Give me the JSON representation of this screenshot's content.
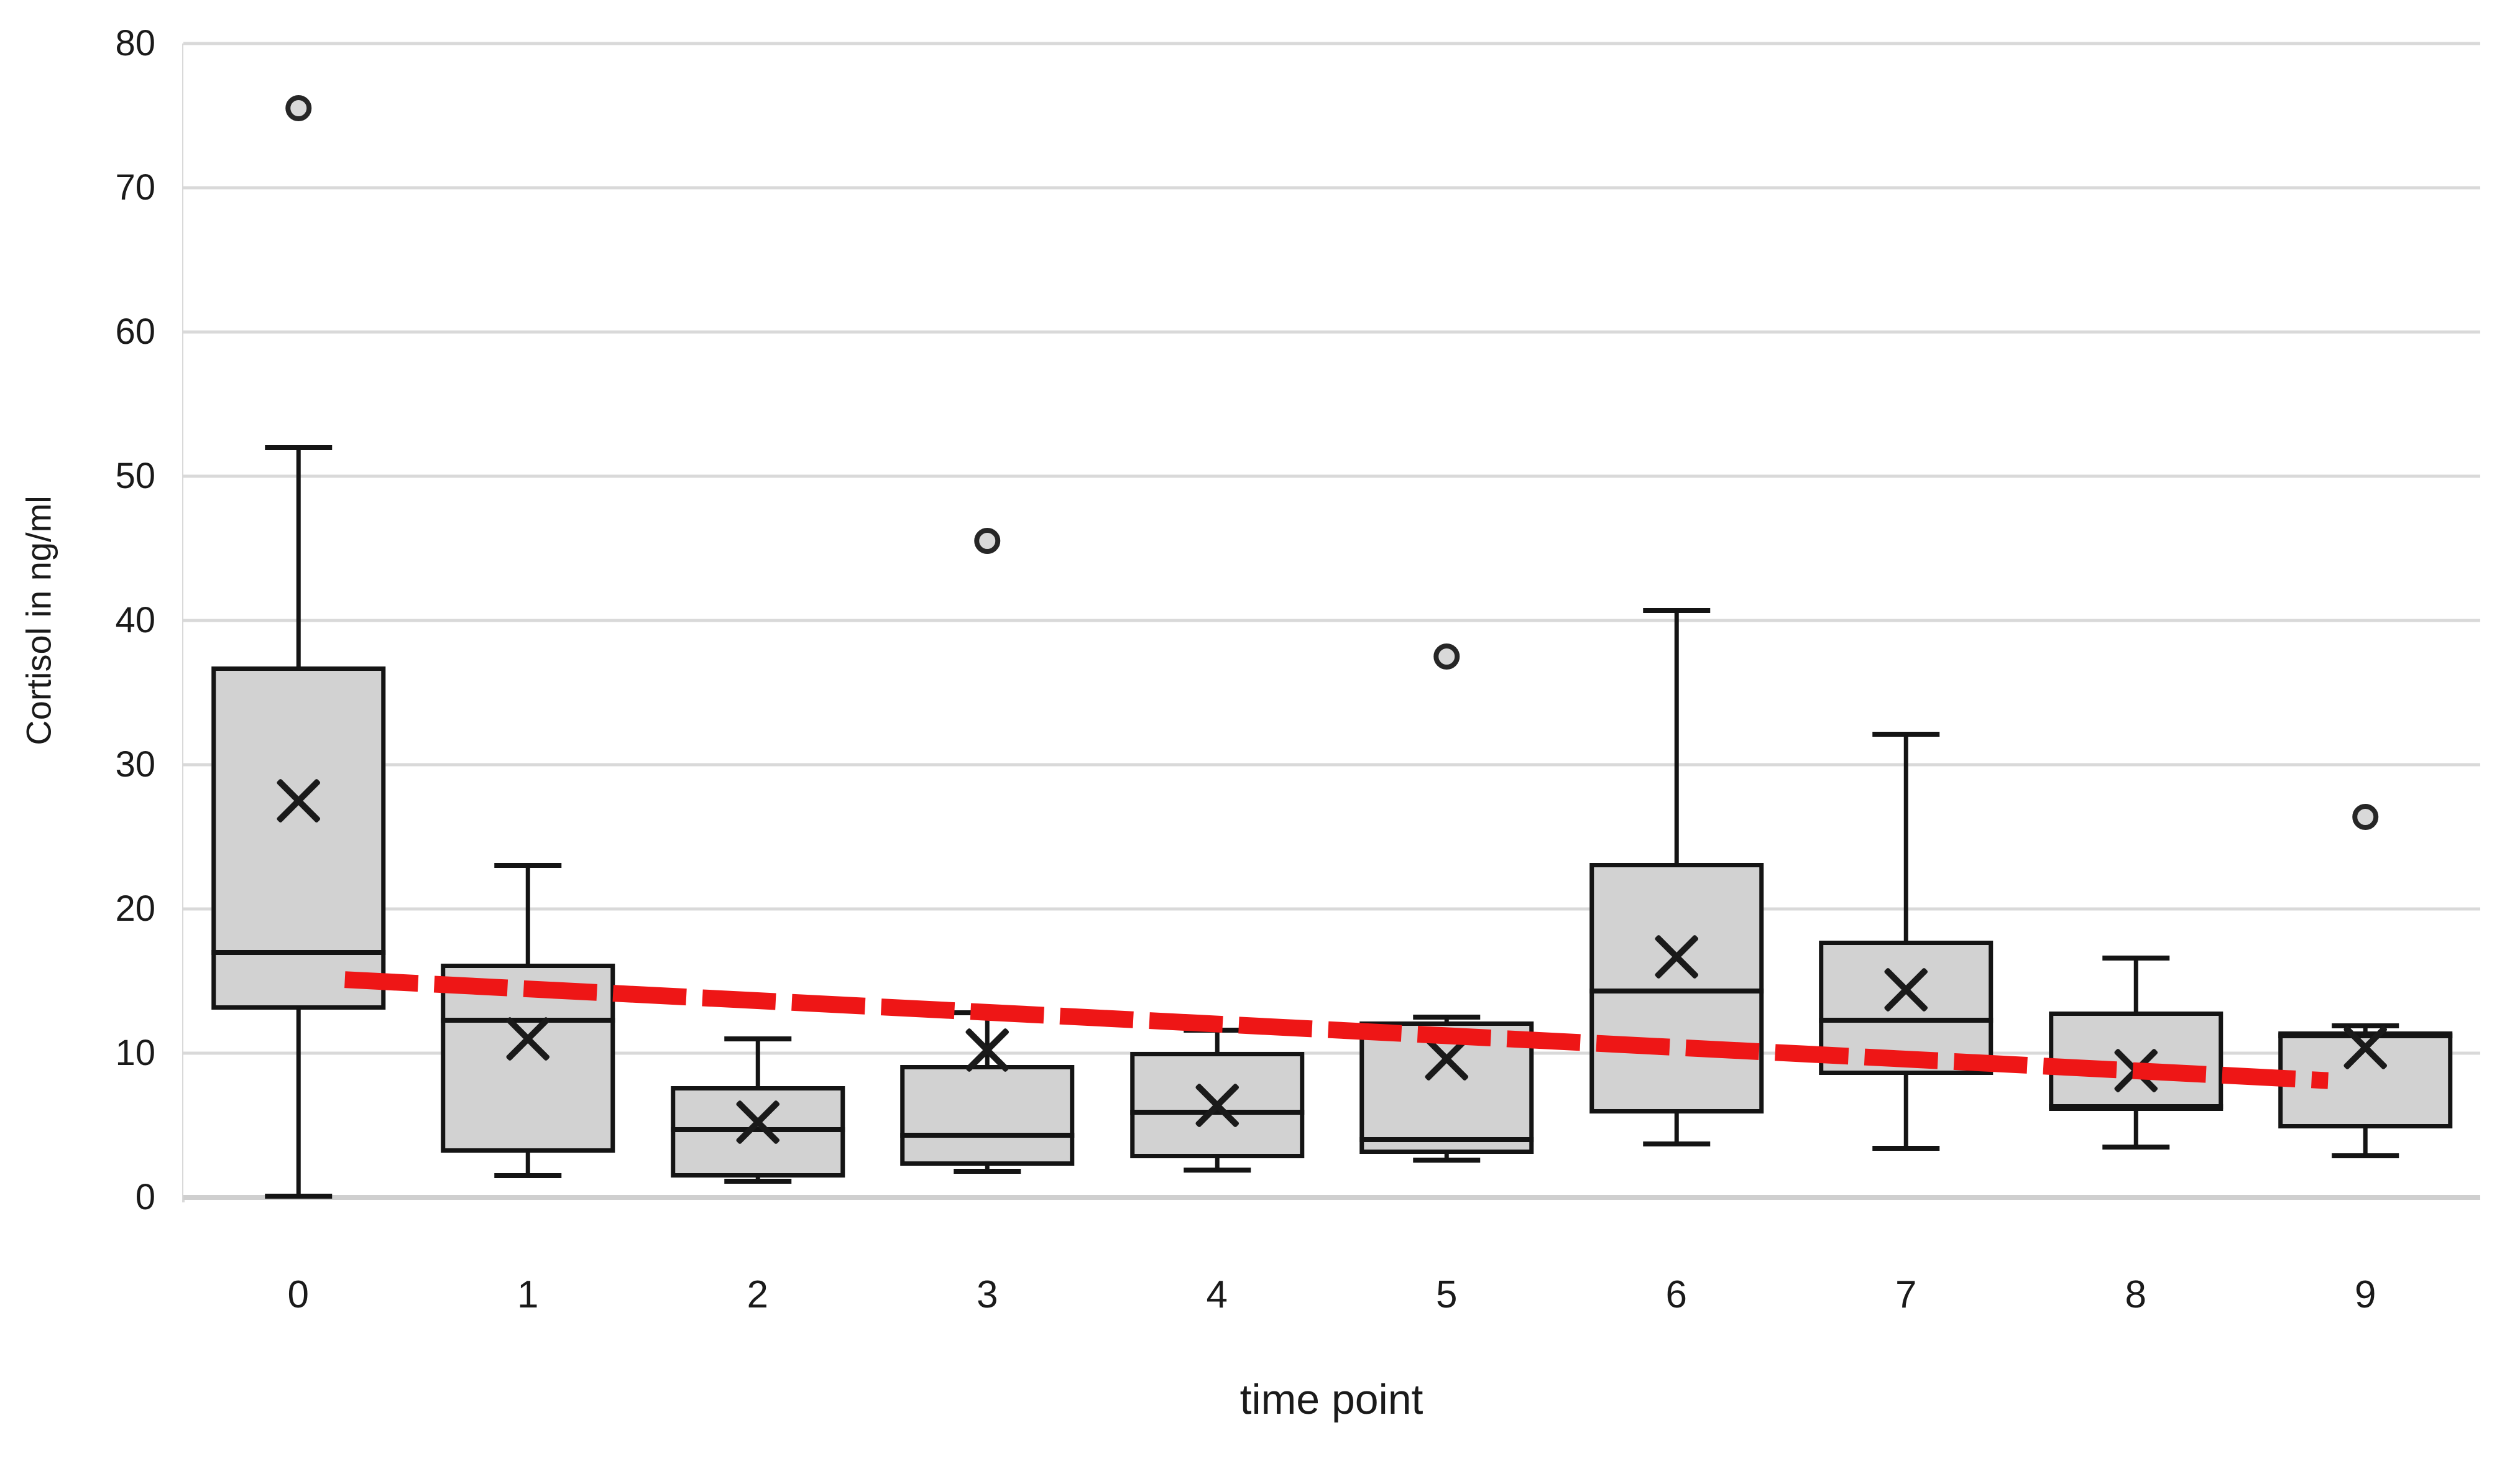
{
  "chart_data": {
    "type": "box",
    "title": "",
    "xlabel": "time point",
    "ylabel": "Cortisol in ng/ml",
    "categories": [
      "0",
      "1",
      "2",
      "3",
      "4",
      "5",
      "6",
      "7",
      "8",
      "9"
    ],
    "y_axis": {
      "min": 0,
      "max": 80,
      "step": 10,
      "ticks": [
        "0",
        "10",
        "20",
        "30",
        "40",
        "50",
        "60",
        "70",
        "80"
      ]
    },
    "grid": "horizontal",
    "legend": "none",
    "series": [
      {
        "category": "0",
        "whisker_low": 0.1,
        "q1": 13.0,
        "median": 17.0,
        "q3": 36.8,
        "whisker_high": 52.0,
        "mean": 27.5,
        "outliers": [
          75.5
        ]
      },
      {
        "category": "1",
        "whisker_low": 1.5,
        "q1": 3.1,
        "median": 12.3,
        "q3": 16.2,
        "whisker_high": 23.0,
        "mean": 11.0,
        "outliers": []
      },
      {
        "category": "2",
        "whisker_low": 1.1,
        "q1": 1.4,
        "median": 4.7,
        "q3": 7.7,
        "whisker_high": 11.0,
        "mean": 5.2,
        "outliers": []
      },
      {
        "category": "3",
        "whisker_low": 1.8,
        "q1": 2.2,
        "median": 4.3,
        "q3": 9.2,
        "whisker_high": 12.8,
        "mean": 10.2,
        "outliers": [
          45.5
        ]
      },
      {
        "category": "4",
        "whisker_low": 1.9,
        "q1": 2.7,
        "median": 5.9,
        "q3": 10.1,
        "whisker_high": 11.6,
        "mean": 6.4,
        "outliers": []
      },
      {
        "category": "5",
        "whisker_low": 2.6,
        "q1": 3.0,
        "median": 4.0,
        "q3": 12.2,
        "whisker_high": 12.5,
        "mean": 9.6,
        "outliers": [
          37.5
        ]
      },
      {
        "category": "6",
        "whisker_low": 3.7,
        "q1": 5.8,
        "median": 14.3,
        "q3": 23.2,
        "whisker_high": 40.7,
        "mean": 16.7,
        "outliers": []
      },
      {
        "category": "7",
        "whisker_low": 3.4,
        "q1": 8.5,
        "median": 12.3,
        "q3": 17.8,
        "whisker_high": 32.1,
        "mean": 14.4,
        "outliers": []
      },
      {
        "category": "8",
        "whisker_low": 3.5,
        "q1": 6.0,
        "median": 6.3,
        "q3": 12.9,
        "whisker_high": 16.6,
        "mean": 8.8,
        "outliers": []
      },
      {
        "category": "9",
        "whisker_low": 2.9,
        "q1": 4.8,
        "median": 11.2,
        "q3": 11.5,
        "whisker_high": 11.9,
        "mean": 10.4,
        "outliers": [
          26.4
        ]
      }
    ],
    "trend_line": {
      "style": "dashed",
      "color": "#ee1616",
      "start": {
        "x_category_index": 0,
        "value": 15.1
      },
      "end": {
        "x_category_index": 9,
        "value": 8.1
      }
    },
    "colors": {
      "box_fill": "#d2d2d2",
      "box_border": "#141414",
      "gridline": "#d9d9d9",
      "text": "#1a1a1a",
      "background": "#ffffff"
    }
  }
}
